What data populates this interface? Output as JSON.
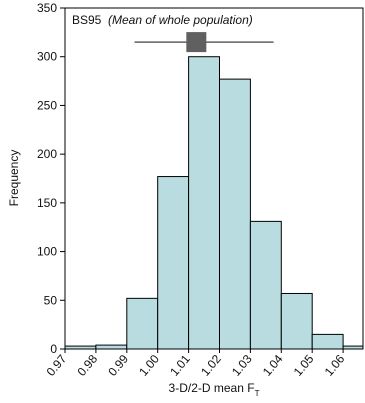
{
  "chart_data": {
    "type": "histogram",
    "annotation": "BS95",
    "annotation_note": "(Mean of whole population)",
    "xlabel": "3-D/2-D mean F",
    "xlabel_sub": "T",
    "ylabel": "Frequency",
    "bins": [
      0.97,
      0.98,
      0.99,
      1.0,
      1.01,
      1.02,
      1.03,
      1.04,
      1.05,
      1.06,
      1.07
    ],
    "values": [
      3,
      4,
      52,
      177,
      300,
      277,
      131,
      57,
      15,
      3
    ],
    "color": "#b9dce1",
    "mean": 1.0125,
    "mean_range": [
      0.9925,
      1.0375
    ],
    "mean_y": 315,
    "mean_color": "#606060",
    "xlim": [
      0.97,
      1.07
    ],
    "ylim": [
      0,
      350
    ],
    "xticks": [
      {
        "value": 0.97,
        "label": "0.97"
      },
      {
        "value": 0.98,
        "label": "0.98"
      },
      {
        "value": 0.99,
        "label": "0.99"
      },
      {
        "value": 1.0,
        "label": "1.00"
      },
      {
        "value": 1.01,
        "label": "1.01"
      },
      {
        "value": 1.02,
        "label": "1.02"
      },
      {
        "value": 1.03,
        "label": "1.03"
      },
      {
        "value": 1.04,
        "label": "1.04"
      },
      {
        "value": 1.05,
        "label": "1.05"
      },
      {
        "value": 1.06,
        "label": "1.06"
      }
    ],
    "yticks": [
      0,
      50,
      100,
      150,
      200,
      250,
      300,
      350
    ]
  }
}
